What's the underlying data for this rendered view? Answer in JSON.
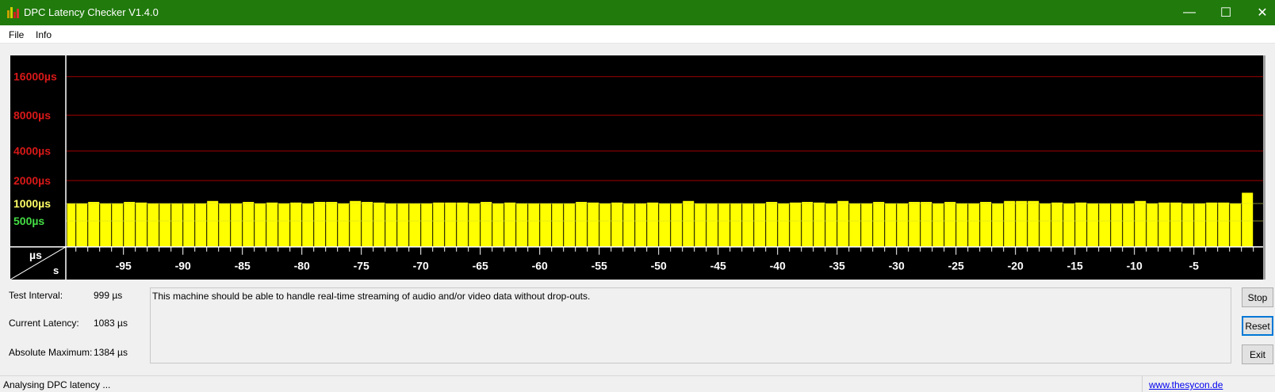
{
  "window": {
    "title": "DPC Latency Checker V1.4.0",
    "controls": {
      "minimize": "—",
      "maximize": "☐",
      "close": "✕"
    }
  },
  "menu": {
    "items": [
      {
        "label": "File"
      },
      {
        "label": "Info"
      }
    ]
  },
  "chart_data": {
    "type": "bar",
    "y_scale": "log",
    "y_unit_label": "µs",
    "x_unit_label": "s",
    "y_ticks": [
      {
        "value": 16000,
        "label": "16000µs",
        "color": "#d81818"
      },
      {
        "value": 8000,
        "label": "8000µs",
        "color": "#d81818"
      },
      {
        "value": 4000,
        "label": "4000µs",
        "color": "#d81818"
      },
      {
        "value": 2000,
        "label": "2000µs",
        "color": "#d81818"
      },
      {
        "value": 1000,
        "label": "1000µs",
        "color": "#ffff66"
      },
      {
        "value": 500,
        "label": "500µs",
        "color": "#44dd44"
      }
    ],
    "x_ticks": [
      -95,
      -90,
      -85,
      -80,
      -75,
      -70,
      -65,
      -60,
      -55,
      -50,
      -45,
      -40,
      -35,
      -30,
      -25,
      -20,
      -15,
      -10,
      -5
    ],
    "bar_color": "#ffff00",
    "grid_color": "#a00000",
    "values": [
      1000,
      1000,
      1050,
      1000,
      1000,
      1050,
      1030,
      1000,
      1000,
      1000,
      1000,
      1000,
      1080,
      1000,
      1000,
      1050,
      1000,
      1030,
      1000,
      1030,
      1000,
      1050,
      1050,
      1000,
      1080,
      1050,
      1030,
      1000,
      1000,
      1000,
      1000,
      1030,
      1030,
      1030,
      1000,
      1050,
      1000,
      1030,
      1000,
      1000,
      1000,
      1000,
      1000,
      1050,
      1030,
      1000,
      1030,
      1000,
      1000,
      1030,
      1000,
      1000,
      1080,
      1000,
      1000,
      1000,
      1000,
      1000,
      1000,
      1050,
      1000,
      1030,
      1050,
      1030,
      1000,
      1080,
      1000,
      1000,
      1050,
      1000,
      1000,
      1050,
      1050,
      1000,
      1050,
      1000,
      1000,
      1050,
      1000,
      1080,
      1080,
      1080,
      1000,
      1030,
      1000,
      1030,
      1000,
      1000,
      1000,
      1000,
      1080,
      1000,
      1030,
      1030,
      1000,
      1000,
      1030,
      1030,
      1000,
      1384
    ]
  },
  "stats": {
    "test_interval": {
      "label": "Test Interval:",
      "value": "999 µs"
    },
    "current_latency": {
      "label": "Current Latency:",
      "value": "1083 µs"
    },
    "absolute_maximum": {
      "label": "Absolute Maximum:",
      "value": "1384 µs"
    }
  },
  "message": "This machine should be able to handle real-time streaming of audio and/or video data without drop-outs.",
  "buttons": {
    "stop": "Stop",
    "reset": "Reset",
    "exit": "Exit"
  },
  "status": {
    "text": "Analysing DPC latency ...",
    "link": "www.thesycon.de"
  }
}
